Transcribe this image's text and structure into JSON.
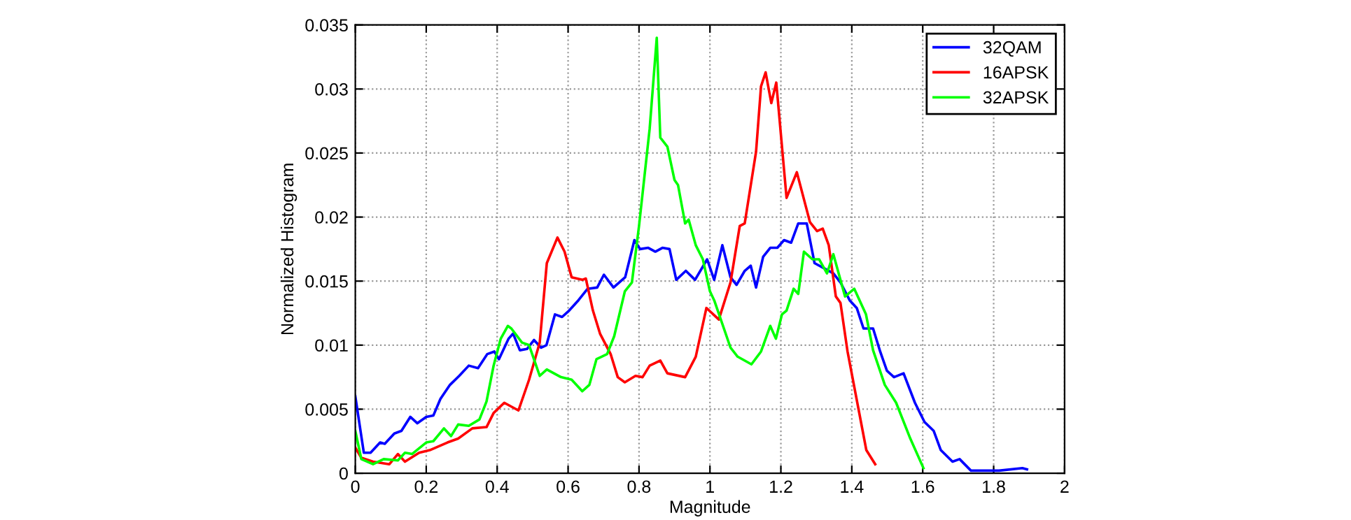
{
  "chart_data": {
    "type": "line",
    "xlabel": "Magnitude",
    "ylabel": "Normalized Histogram",
    "xlim": [
      0,
      2
    ],
    "ylim": [
      0,
      0.035
    ],
    "xticks": [
      0,
      0.2,
      0.4,
      0.6,
      0.8,
      1,
      1.2,
      1.4,
      1.6,
      1.8,
      2
    ],
    "yticks": [
      0,
      0.005,
      0.01,
      0.015,
      0.02,
      0.025,
      0.03,
      0.035
    ],
    "grid": true,
    "legend": "top right",
    "line_style": "solid",
    "series": [
      {
        "name": "32QAM",
        "color": "#0000ff",
        "x": [
          0,
          0.024,
          0.043,
          0.07,
          0.083,
          0.11,
          0.13,
          0.155,
          0.175,
          0.2,
          0.22,
          0.24,
          0.267,
          0.293,
          0.32,
          0.346,
          0.372,
          0.392,
          0.405,
          0.432,
          0.445,
          0.464,
          0.484,
          0.504,
          0.524,
          0.539,
          0.563,
          0.583,
          0.603,
          0.629,
          0.655,
          0.682,
          0.701,
          0.728,
          0.761,
          0.787,
          0.803,
          0.826,
          0.846,
          0.866,
          0.886,
          0.905,
          0.932,
          0.958,
          0.992,
          1.012,
          1.035,
          1.058,
          1.075,
          1.098,
          1.115,
          1.13,
          1.15,
          1.17,
          1.19,
          1.209,
          1.229,
          1.249,
          1.273,
          1.295,
          1.322,
          1.348,
          1.368,
          1.394,
          1.414,
          1.433,
          1.46,
          1.48,
          1.499,
          1.519,
          1.546,
          1.578,
          1.605,
          1.631,
          1.651,
          1.684,
          1.704,
          1.736,
          1.815,
          1.881,
          1.894
        ],
        "values": [
          0.006,
          0.0016,
          0.0016,
          0.0024,
          0.0023,
          0.0031,
          0.0033,
          0.0044,
          0.0039,
          0.0044,
          0.0045,
          0.0058,
          0.0069,
          0.0076,
          0.0084,
          0.0082,
          0.0093,
          0.0095,
          0.0089,
          0.0105,
          0.0109,
          0.0096,
          0.0097,
          0.0104,
          0.0098,
          0.01,
          0.0124,
          0.0122,
          0.0127,
          0.0135,
          0.0144,
          0.0145,
          0.0155,
          0.0145,
          0.0153,
          0.0182,
          0.0175,
          0.0176,
          0.0173,
          0.0176,
          0.0175,
          0.0151,
          0.0158,
          0.0151,
          0.0167,
          0.0151,
          0.0178,
          0.0153,
          0.0147,
          0.0158,
          0.0162,
          0.0145,
          0.0169,
          0.0176,
          0.0176,
          0.0182,
          0.018,
          0.0195,
          0.0195,
          0.0164,
          0.016,
          0.0156,
          0.0149,
          0.0135,
          0.0129,
          0.0113,
          0.0113,
          0.0095,
          0.008,
          0.0075,
          0.0078,
          0.0055,
          0.004,
          0.0033,
          0.0018,
          0.0009,
          0.0011,
          0.0002,
          0.0002,
          0.0004,
          0.0003
        ]
      },
      {
        "name": "16APSK",
        "color": "#ff0000",
        "x": [
          0,
          0.017,
          0.05,
          0.096,
          0.12,
          0.14,
          0.18,
          0.21,
          0.26,
          0.29,
          0.33,
          0.37,
          0.39,
          0.42,
          0.46,
          0.49,
          0.52,
          0.54,
          0.57,
          0.59,
          0.61,
          0.64,
          0.65,
          0.67,
          0.69,
          0.72,
          0.74,
          0.76,
          0.79,
          0.81,
          0.83,
          0.86,
          0.88,
          0.93,
          0.96,
          0.99,
          1.025,
          1.058,
          1.084,
          1.098,
          1.13,
          1.144,
          1.157,
          1.173,
          1.187,
          1.216,
          1.245,
          1.282,
          1.302,
          1.318,
          1.335,
          1.355,
          1.368,
          1.388,
          1.421,
          1.441,
          1.466
        ],
        "values": [
          0.002,
          0.0012,
          0.0009,
          0.0007,
          0.0015,
          0.0009,
          0.0016,
          0.0018,
          0.0024,
          0.0027,
          0.0035,
          0.0036,
          0.0047,
          0.0055,
          0.0049,
          0.0073,
          0.0102,
          0.0164,
          0.0184,
          0.0173,
          0.0153,
          0.0151,
          0.0152,
          0.0127,
          0.0109,
          0.0093,
          0.0075,
          0.0071,
          0.0076,
          0.0075,
          0.0084,
          0.0088,
          0.0078,
          0.0075,
          0.0091,
          0.0129,
          0.012,
          0.0149,
          0.0193,
          0.0195,
          0.0251,
          0.0302,
          0.0313,
          0.0289,
          0.0305,
          0.0215,
          0.0235,
          0.0196,
          0.0189,
          0.0191,
          0.0178,
          0.0138,
          0.0133,
          0.0095,
          0.0047,
          0.0018,
          0.0007
        ]
      },
      {
        "name": "32APSK",
        "color": "#00ff00",
        "x": [
          0,
          0.017,
          0.05,
          0.08,
          0.12,
          0.14,
          0.16,
          0.2,
          0.22,
          0.25,
          0.27,
          0.29,
          0.32,
          0.35,
          0.37,
          0.39,
          0.41,
          0.43,
          0.44,
          0.47,
          0.49,
          0.52,
          0.54,
          0.58,
          0.61,
          0.64,
          0.66,
          0.68,
          0.71,
          0.73,
          0.76,
          0.78,
          0.8,
          0.83,
          0.85,
          0.86,
          0.88,
          0.9,
          0.91,
          0.93,
          0.94,
          0.96,
          0.98,
          1.0,
          1.012,
          1.058,
          1.078,
          1.117,
          1.144,
          1.17,
          1.186,
          1.203,
          1.216,
          1.236,
          1.249,
          1.265,
          1.289,
          1.308,
          1.33,
          1.348,
          1.381,
          1.407,
          1.44,
          1.46,
          1.493,
          1.525,
          1.565,
          1.602
        ],
        "values": [
          0.0033,
          0.0011,
          0.0007,
          0.0011,
          0.001,
          0.0016,
          0.0015,
          0.0024,
          0.0025,
          0.0035,
          0.0029,
          0.0038,
          0.0037,
          0.0042,
          0.0056,
          0.0084,
          0.0105,
          0.0115,
          0.0113,
          0.0102,
          0.01,
          0.0076,
          0.0081,
          0.0075,
          0.0073,
          0.0064,
          0.0069,
          0.0089,
          0.0093,
          0.0107,
          0.0142,
          0.0149,
          0.0193,
          0.0269,
          0.034,
          0.0262,
          0.0255,
          0.0229,
          0.0225,
          0.0195,
          0.0198,
          0.0178,
          0.0167,
          0.0142,
          0.0135,
          0.0098,
          0.0091,
          0.0085,
          0.0095,
          0.0115,
          0.0105,
          0.0124,
          0.0127,
          0.0144,
          0.014,
          0.0173,
          0.0167,
          0.0167,
          0.0156,
          0.0171,
          0.0138,
          0.0144,
          0.0124,
          0.0096,
          0.0069,
          0.0055,
          0.0027,
          0.0004
        ]
      }
    ]
  }
}
